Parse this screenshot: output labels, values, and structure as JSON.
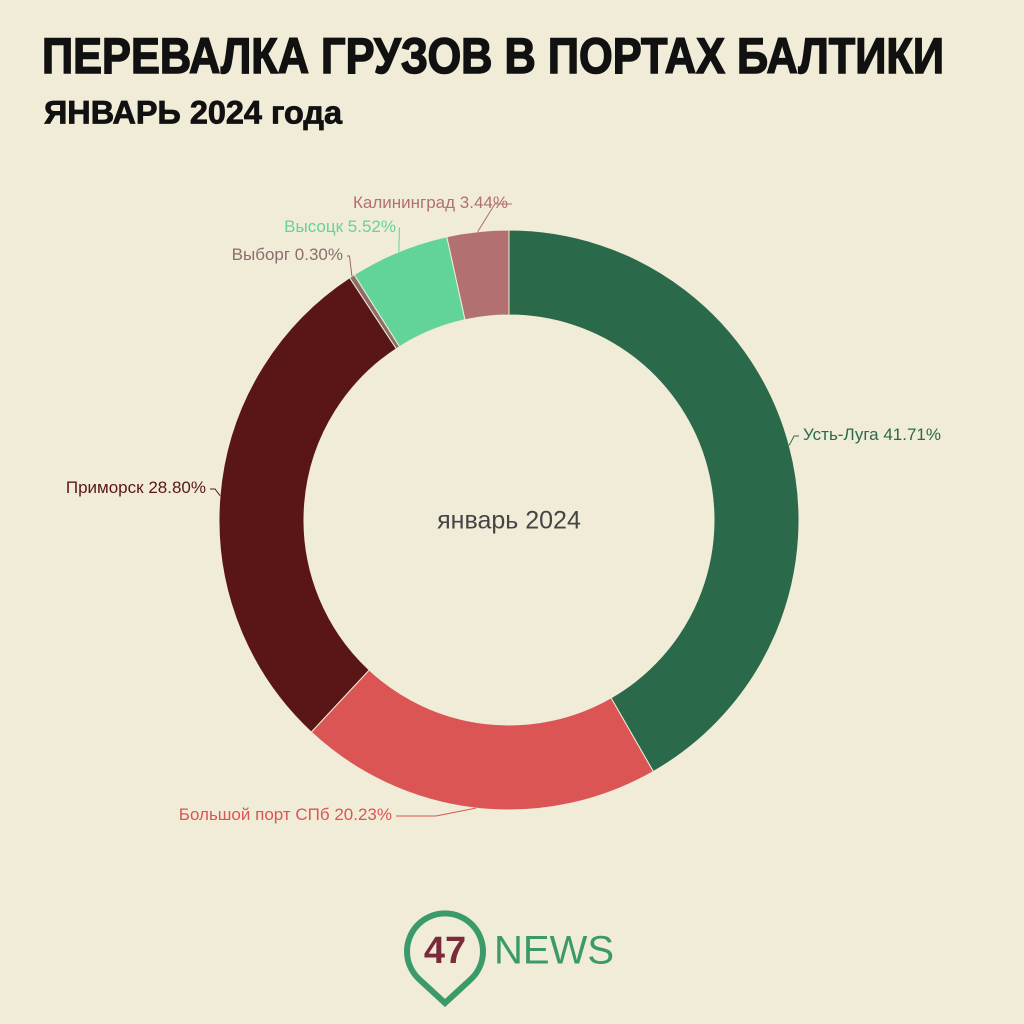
{
  "chart_data": {
    "type": "donut",
    "title": "ПЕРЕВАЛКА ГРУЗОВ В ПОРТАХ БАЛТИКИ",
    "subtitle": "ЯНВАРЬ 2024 года",
    "center_label": "январь 2024",
    "categories": [
      "Усть-Луга",
      "Большой порт СПб",
      "Приморск",
      "Выборг",
      "Высоцк",
      "Калининград"
    ],
    "values": [
      41.71,
      20.23,
      28.8,
      0.3,
      5.52,
      3.44
    ],
    "value_labels": [
      "41.71%",
      "20.23%",
      "28.80%",
      "0.30%",
      "5.52%",
      "3.44%"
    ],
    "colors": [
      "#2a6a4a",
      "#dc5555",
      "#5a1616",
      "#8b6d6d",
      "#62d49a",
      "#b27070"
    ]
  },
  "logo": {
    "number": "47",
    "text": "NEWS"
  }
}
